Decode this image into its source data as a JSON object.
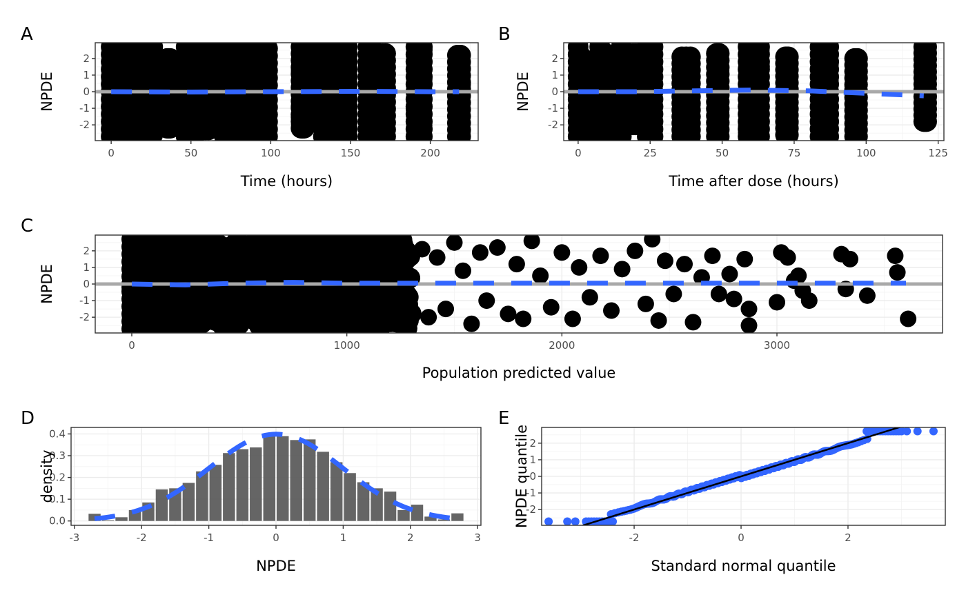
{
  "colors": {
    "points": "#000000",
    "trend": "#3366FF",
    "reference": "#A9A9A9",
    "bars": "#595959",
    "qq_points": "#3366FF",
    "qq_line": "#000000"
  },
  "chart_data": [
    {
      "id": "A",
      "panel_label": "A",
      "type": "scatter",
      "xlabel": "Time (hours)",
      "ylabel": "NPDE",
      "xlim": [
        -10,
        230
      ],
      "ylim": [
        -2.95,
        2.95
      ],
      "xticks": [
        0,
        50,
        100,
        150,
        200
      ],
      "xtick_labels": [
        "0",
        "50",
        "100",
        "150",
        "200"
      ],
      "yticks": [
        -2,
        -1,
        0,
        1,
        2
      ],
      "ytick_labels": [
        "-2",
        "-1",
        "0",
        "1",
        "2"
      ],
      "reference_line_y": 0,
      "point_columns": [
        {
          "x": [
            0,
            15
          ],
          "ymin": -2.7,
          "ymax": 2.7
        },
        {
          "x": [
            24,
            26
          ],
          "ymin": -2.6,
          "ymax": 2.7
        },
        {
          "x": [
            35,
            37
          ],
          "ymin": -2.2,
          "ymax": 2.0
        },
        {
          "x": [
            47,
            52
          ],
          "ymin": -2.7,
          "ymax": 2.7
        },
        {
          "x": [
            57,
            61
          ],
          "ymin": -2.3,
          "ymax": 2.7
        },
        {
          "x": [
            71,
            77
          ],
          "ymin": -2.7,
          "ymax": 2.5
        },
        {
          "x": [
            82,
            86
          ],
          "ymin": -2.7,
          "ymax": 2.7
        },
        {
          "x": [
            95,
            98
          ],
          "ymin": -2.7,
          "ymax": 2.6
        },
        {
          "x": [
            119,
            121
          ],
          "ymin": -2.2,
          "ymax": 2.7
        },
        {
          "x": [
            133,
            148
          ],
          "ymin": -2.7,
          "ymax": 2.7
        },
        {
          "x": [
            161,
            163
          ],
          "ymin": -2.7,
          "ymax": 2.7
        },
        {
          "x": [
            168,
            172
          ],
          "ymin": -2.7,
          "ymax": 2.3
        },
        {
          "x": [
            191,
            195
          ],
          "ymin": -2.7,
          "ymax": 2.7
        },
        {
          "x": [
            217,
            219
          ],
          "ymin": -2.7,
          "ymax": 2.2
        }
      ],
      "trend": {
        "x": [
          0,
          50,
          100,
          150,
          200,
          218
        ],
        "y": [
          0.0,
          -0.02,
          0.0,
          0.02,
          0.0,
          0.0
        ]
      }
    },
    {
      "id": "B",
      "panel_label": "B",
      "type": "scatter",
      "xlabel": "Time after dose (hours)",
      "ylabel": "NPDE",
      "xlim": [
        -5,
        127
      ],
      "ylim": [
        -2.95,
        2.95
      ],
      "xticks": [
        0,
        25,
        50,
        75,
        100,
        125
      ],
      "xtick_labels": [
        "0",
        "25",
        "50",
        "75",
        "100",
        "125"
      ],
      "yticks": [
        -2,
        -1,
        0,
        1,
        2
      ],
      "ytick_labels": [
        "-2",
        "-1",
        "0",
        "1",
        "2"
      ],
      "reference_line_y": 0,
      "point_columns": [
        {
          "x": [
            0,
            15
          ],
          "ymin": -2.7,
          "ymax": 2.7
        },
        {
          "x": [
            19,
            21
          ],
          "ymin": -2.0,
          "ymax": 2.3
        },
        {
          "x": [
            24,
            26
          ],
          "ymin": -2.7,
          "ymax": 2.7
        },
        {
          "x": [
            36,
            39
          ],
          "ymin": -2.7,
          "ymax": 2.1
        },
        {
          "x": [
            48,
            49
          ],
          "ymin": -2.7,
          "ymax": 2.3
        },
        {
          "x": [
            59,
            63
          ],
          "ymin": -2.7,
          "ymax": 2.7
        },
        {
          "x": [
            72,
            73
          ],
          "ymin": -2.6,
          "ymax": 2.1
        },
        {
          "x": [
            84,
            87
          ],
          "ymin": -2.7,
          "ymax": 2.7
        },
        {
          "x": [
            96,
            97
          ],
          "ymin": -2.7,
          "ymax": 2.0
        },
        {
          "x": [
            120,
            121
          ],
          "ymin": -1.8,
          "ymax": 2.7
        }
      ],
      "trend": {
        "x": [
          0,
          20,
          40,
          60,
          80,
          100,
          120
        ],
        "y": [
          0.0,
          0.0,
          0.05,
          0.1,
          0.05,
          -0.1,
          -0.25
        ]
      }
    },
    {
      "id": "C",
      "panel_label": "C",
      "type": "scatter",
      "xlabel": "Population predicted value",
      "ylabel": "NPDE",
      "xlim": [
        -170,
        3770
      ],
      "ylim": [
        -2.95,
        2.95
      ],
      "xticks": [
        0,
        1000,
        2000,
        3000
      ],
      "xtick_labels": [
        "0",
        "1000",
        "2000",
        "3000"
      ],
      "yticks": [
        -2,
        -1,
        0,
        1,
        2
      ],
      "ytick_labels": [
        "-2",
        "-1",
        "0",
        "1",
        "2"
      ],
      "reference_line_y": 0,
      "dense_region": {
        "x": [
          0,
          1300
        ],
        "ymin": -2.7,
        "ymax": 2.7
      },
      "scatter_points": [
        [
          1350,
          2.1
        ],
        [
          1380,
          -2.0
        ],
        [
          1420,
          1.6
        ],
        [
          1460,
          -1.5
        ],
        [
          1500,
          2.5
        ],
        [
          1540,
          0.8
        ],
        [
          1580,
          -2.4
        ],
        [
          1620,
          1.9
        ],
        [
          1650,
          -1.0
        ],
        [
          1700,
          2.2
        ],
        [
          1750,
          -1.8
        ],
        [
          1790,
          1.2
        ],
        [
          1820,
          -2.1
        ],
        [
          1860,
          2.6
        ],
        [
          1900,
          0.5
        ],
        [
          1950,
          -1.4
        ],
        [
          2000,
          1.9
        ],
        [
          2050,
          -2.1
        ],
        [
          2080,
          1.0
        ],
        [
          2130,
          -0.8
        ],
        [
          2180,
          1.7
        ],
        [
          2230,
          -1.6
        ],
        [
          2280,
          0.9
        ],
        [
          2340,
          2.0
        ],
        [
          2390,
          -1.2
        ],
        [
          2420,
          2.7
        ],
        [
          2450,
          -2.2
        ],
        [
          2480,
          1.4
        ],
        [
          2520,
          -0.6
        ],
        [
          2570,
          1.2
        ],
        [
          2610,
          -2.3
        ],
        [
          2650,
          0.4
        ],
        [
          2700,
          1.7
        ],
        [
          2730,
          -0.6
        ],
        [
          2780,
          0.6
        ],
        [
          2800,
          -0.9
        ],
        [
          2850,
          1.5
        ],
        [
          2870,
          -1.5
        ],
        [
          2870,
          -2.5
        ],
        [
          3020,
          1.9
        ],
        [
          3050,
          1.6
        ],
        [
          3100,
          0.5
        ],
        [
          3120,
          -0.4
        ],
        [
          3080,
          0.2
        ],
        [
          3150,
          -1.0
        ],
        [
          3000,
          -1.1
        ],
        [
          3300,
          1.8
        ],
        [
          3340,
          1.5
        ],
        [
          3320,
          -0.3
        ],
        [
          3420,
          -0.7
        ],
        [
          3550,
          1.7
        ],
        [
          3560,
          0.7
        ],
        [
          3610,
          -2.1
        ]
      ],
      "trend": {
        "x": [
          0,
          250,
          500,
          750,
          1000,
          1500,
          2000,
          2500,
          3000,
          3500,
          3600
        ],
        "y": [
          0.0,
          -0.05,
          0.05,
          0.1,
          0.05,
          0.05,
          0.05,
          0.05,
          0.05,
          0.05,
          0.05
        ]
      }
    },
    {
      "id": "D",
      "panel_label": "D",
      "type": "bar",
      "xlabel": "NPDE",
      "ylabel": "density",
      "xlim": [
        -3.05,
        3.05
      ],
      "ylim": [
        -0.02,
        0.43
      ],
      "xticks": [
        -3,
        -2,
        -1,
        0,
        1,
        2,
        3
      ],
      "xtick_labels": [
        "-3",
        "-2",
        "-1",
        "0",
        "1",
        "2",
        "3"
      ],
      "yticks": [
        0.0,
        0.1,
        0.2,
        0.3,
        0.4
      ],
      "ytick_labels": [
        "0.0",
        "0.1",
        "0.2",
        "0.3",
        "0.4"
      ],
      "bin_width": 0.2,
      "bin_centers": [
        -2.7,
        -2.5,
        -2.3,
        -2.1,
        -1.9,
        -1.7,
        -1.5,
        -1.3,
        -1.1,
        -0.9,
        -0.7,
        -0.5,
        -0.3,
        -0.1,
        0.1,
        0.3,
        0.5,
        0.7,
        0.9,
        1.1,
        1.3,
        1.5,
        1.7,
        1.9,
        2.1,
        2.3,
        2.5,
        2.7
      ],
      "values": [
        0.033,
        0.003,
        0.017,
        0.05,
        0.085,
        0.145,
        0.15,
        0.175,
        0.228,
        0.258,
        0.312,
        0.33,
        0.338,
        0.4,
        0.39,
        0.372,
        0.375,
        0.318,
        0.27,
        0.22,
        0.178,
        0.15,
        0.135,
        0.05,
        0.075,
        0.02,
        0.007,
        0.035
      ],
      "density_curve": {
        "type": "normal",
        "mean": 0,
        "sd": 1,
        "x_range": [
          -2.7,
          2.7
        ]
      }
    },
    {
      "id": "E",
      "panel_label": "E",
      "type": "scatter",
      "xlabel": "Standard normal quantile",
      "ylabel": "NPDE quantile",
      "xlim": [
        -3.73,
        3.82
      ],
      "ylim": [
        -2.95,
        2.95
      ],
      "xticks": [
        -2,
        0,
        2
      ],
      "xtick_labels": [
        "-2",
        "0",
        "2"
      ],
      "yticks": [
        -2,
        -1,
        0,
        1,
        2
      ],
      "ytick_labels": [
        "-2",
        "-1",
        "0",
        "1",
        "2"
      ],
      "qq_line": {
        "slope": 1,
        "intercept": 0
      },
      "qq_points_range": {
        "x": [
          -3.6,
          3.6
        ],
        "clip_low": -2.72,
        "clip_high": 2.72
      },
      "outliers_low_x": [
        -3.6,
        -3.25,
        -3.1
      ],
      "outliers_high_x": [
        3.1,
        3.3,
        3.6
      ]
    }
  ]
}
